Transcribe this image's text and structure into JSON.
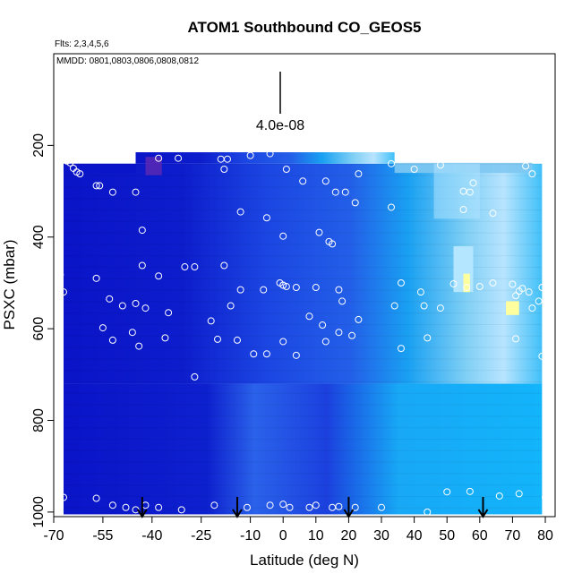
{
  "chart_data": {
    "type": "heatmap",
    "title": "ATOM1 Southbound CO_GEOS5",
    "subtitle_flights": "Flts: 2,3,4,5,6",
    "subtitle_dates": "MMDD: 0801,0803,0806,0808,0812",
    "scale_label": "4.0e-08",
    "xlabel": "Latitude (deg N)",
    "ylabel": "PSXC (mbar)",
    "xlim": [
      -70,
      83
    ],
    "ylim": [
      1010,
      0
    ],
    "x_ticks": [
      -70,
      -55,
      -40,
      -25,
      -10,
      0,
      10,
      20,
      30,
      40,
      50,
      60,
      70,
      80
    ],
    "y_ticks": [
      200,
      400,
      600,
      800,
      1000
    ],
    "colors": {
      "dark_blue": "#0a14c8",
      "mid_blue": "#1e50e6",
      "light_blue": "#14aaf5",
      "pale_blue": "#b4e6ff",
      "yellow": "#ffff9e",
      "purple": "#5a28b4"
    },
    "arrows_lat": [
      -43,
      -14,
      20,
      61
    ],
    "samples": [
      [
        -67,
        230
      ],
      [
        -66,
        234
      ],
      [
        -65,
        238
      ],
      [
        -64,
        250
      ],
      [
        -63,
        258
      ],
      [
        -62,
        262
      ],
      [
        -57,
        288
      ],
      [
        -56,
        288
      ],
      [
        -52,
        302
      ],
      [
        -45,
        302
      ],
      [
        -42,
        200
      ],
      [
        -38,
        228
      ],
      [
        -32,
        228
      ],
      [
        -19,
        230
      ],
      [
        -17,
        230
      ],
      [
        -18,
        252
      ],
      [
        -10,
        222
      ],
      [
        -4,
        218
      ],
      [
        1,
        252
      ],
      [
        6,
        278
      ],
      [
        13,
        278
      ],
      [
        16,
        302
      ],
      [
        19,
        302
      ],
      [
        23,
        262
      ],
      [
        27,
        185
      ],
      [
        33,
        240
      ],
      [
        40,
        252
      ],
      [
        48,
        243
      ],
      [
        55,
        300
      ],
      [
        57,
        302
      ],
      [
        58,
        282
      ],
      [
        74,
        245
      ],
      [
        76,
        262
      ],
      [
        -43,
        385
      ],
      [
        -30,
        465
      ],
      [
        -27,
        465
      ],
      [
        -18,
        462
      ],
      [
        -13,
        345
      ],
      [
        -5,
        358
      ],
      [
        0,
        398
      ],
      [
        11,
        390
      ],
      [
        14,
        410
      ],
      [
        15,
        415
      ],
      [
        22,
        325
      ],
      [
        33,
        335
      ],
      [
        55,
        340
      ],
      [
        64,
        348
      ],
      [
        -68,
        482
      ],
      [
        -67,
        520
      ],
      [
        -57,
        490
      ],
      [
        -53,
        535
      ],
      [
        -49,
        550
      ],
      [
        -45,
        545
      ],
      [
        -43,
        462
      ],
      [
        -42,
        555
      ],
      [
        -38,
        485
      ],
      [
        -35,
        565
      ],
      [
        -22,
        583
      ],
      [
        -16,
        550
      ],
      [
        -13,
        515
      ],
      [
        -6,
        515
      ],
      [
        -1,
        500
      ],
      [
        0,
        505
      ],
      [
        1,
        508
      ],
      [
        4,
        510
      ],
      [
        8,
        573
      ],
      [
        10,
        510
      ],
      [
        12,
        592
      ],
      [
        17,
        515
      ],
      [
        18,
        540
      ],
      [
        23,
        580
      ],
      [
        34,
        550
      ],
      [
        36,
        500
      ],
      [
        42,
        520
      ],
      [
        43,
        550
      ],
      [
        48,
        555
      ],
      [
        52,
        502
      ],
      [
        56,
        510
      ],
      [
        60,
        508
      ],
      [
        64,
        500
      ],
      [
        70,
        503
      ],
      [
        71,
        528
      ],
      [
        72,
        518
      ],
      [
        73,
        512
      ],
      [
        75,
        520
      ],
      [
        76,
        555
      ],
      [
        78,
        540
      ],
      [
        79,
        510
      ],
      [
        -55,
        598
      ],
      [
        -52,
        625
      ],
      [
        -46,
        608
      ],
      [
        -44,
        638
      ],
      [
        -36,
        620
      ],
      [
        -27,
        705
      ],
      [
        -20,
        623
      ],
      [
        -14,
        625
      ],
      [
        -9,
        655
      ],
      [
        -5,
        655
      ],
      [
        0,
        628
      ],
      [
        4,
        658
      ],
      [
        13,
        628
      ],
      [
        17,
        608
      ],
      [
        21,
        615
      ],
      [
        36,
        643
      ],
      [
        44,
        620
      ],
      [
        71,
        622
      ],
      [
        79,
        660
      ],
      [
        -67,
        968
      ],
      [
        -57,
        970
      ],
      [
        -52,
        985
      ],
      [
        -48,
        990
      ],
      [
        -45,
        995
      ],
      [
        -42,
        985
      ],
      [
        -38,
        990
      ],
      [
        -31,
        995
      ],
      [
        -21,
        985
      ],
      [
        -11,
        990
      ],
      [
        -4,
        985
      ],
      [
        0,
        983
      ],
      [
        2,
        990
      ],
      [
        8,
        990
      ],
      [
        10,
        985
      ],
      [
        15,
        990
      ],
      [
        17,
        988
      ],
      [
        22,
        990
      ],
      [
        30,
        990
      ],
      [
        44,
        1000
      ],
      [
        50,
        956
      ],
      [
        57,
        955
      ],
      [
        66,
        965
      ],
      [
        72,
        960
      ],
      [
        80,
        968
      ]
    ]
  }
}
